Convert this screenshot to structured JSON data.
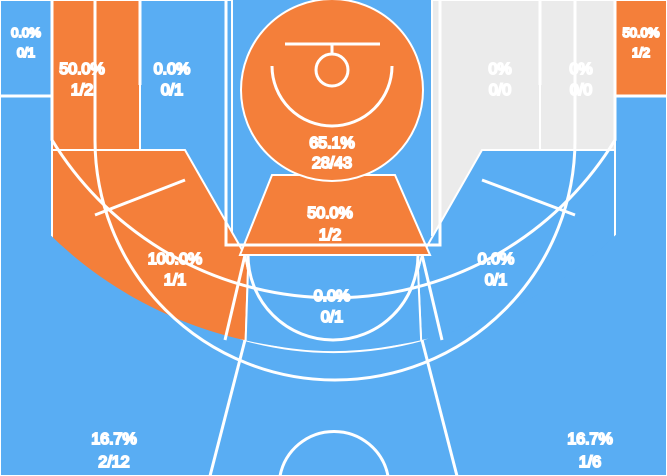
{
  "colors": {
    "cold": "#59adf3",
    "hot": "#f47f3a",
    "neutral": "#ebebeb",
    "lines": "#ffffff",
    "text": "#222222"
  },
  "chart_data": {
    "type": "heatmap",
    "title": "",
    "zones": [
      {
        "id": "left-corner-three",
        "pct": "0.0%",
        "made_att": "0/1",
        "made": 0,
        "att": 1,
        "heat": "cold"
      },
      {
        "id": "left-long-mid-baseline",
        "pct": "50.0%",
        "made_att": "1/2",
        "made": 1,
        "att": 2,
        "heat": "hot"
      },
      {
        "id": "left-short-mid-baseline",
        "pct": "0.0%",
        "made_att": "0/1",
        "made": 0,
        "att": 1,
        "heat": "cold"
      },
      {
        "id": "restricted-area",
        "pct": "65.1%",
        "made_att": "28/43",
        "made": 28,
        "att": 43,
        "heat": "hot"
      },
      {
        "id": "right-short-mid-baseline",
        "pct": "0%",
        "made_att": "0/0",
        "made": 0,
        "att": 0,
        "heat": "neutral"
      },
      {
        "id": "right-long-mid-baseline",
        "pct": "0%",
        "made_att": "0/0",
        "made": 0,
        "att": 0,
        "heat": "neutral"
      },
      {
        "id": "right-corner-three",
        "pct": "50.0%",
        "made_att": "1/2",
        "made": 1,
        "att": 2,
        "heat": "hot"
      },
      {
        "id": "paint-non-ra",
        "pct": "50.0%",
        "made_att": "1/2",
        "made": 1,
        "att": 2,
        "heat": "hot"
      },
      {
        "id": "left-wing-mid",
        "pct": "100.0%",
        "made_att": "1/1",
        "made": 1,
        "att": 1,
        "heat": "hot"
      },
      {
        "id": "right-wing-mid",
        "pct": "0.0%",
        "made_att": "0/1",
        "made": 0,
        "att": 1,
        "heat": "cold"
      },
      {
        "id": "top-of-key-mid",
        "pct": "0.0%",
        "made_att": "0/1",
        "made": 0,
        "att": 1,
        "heat": "cold"
      },
      {
        "id": "left-wing-three",
        "pct": "16.7%",
        "made_att": "2/12",
        "made": 2,
        "att": 12,
        "heat": "cold"
      },
      {
        "id": "right-wing-three",
        "pct": "16.7%",
        "made_att": "1/6",
        "made": 1,
        "att": 6,
        "heat": "cold"
      }
    ]
  }
}
